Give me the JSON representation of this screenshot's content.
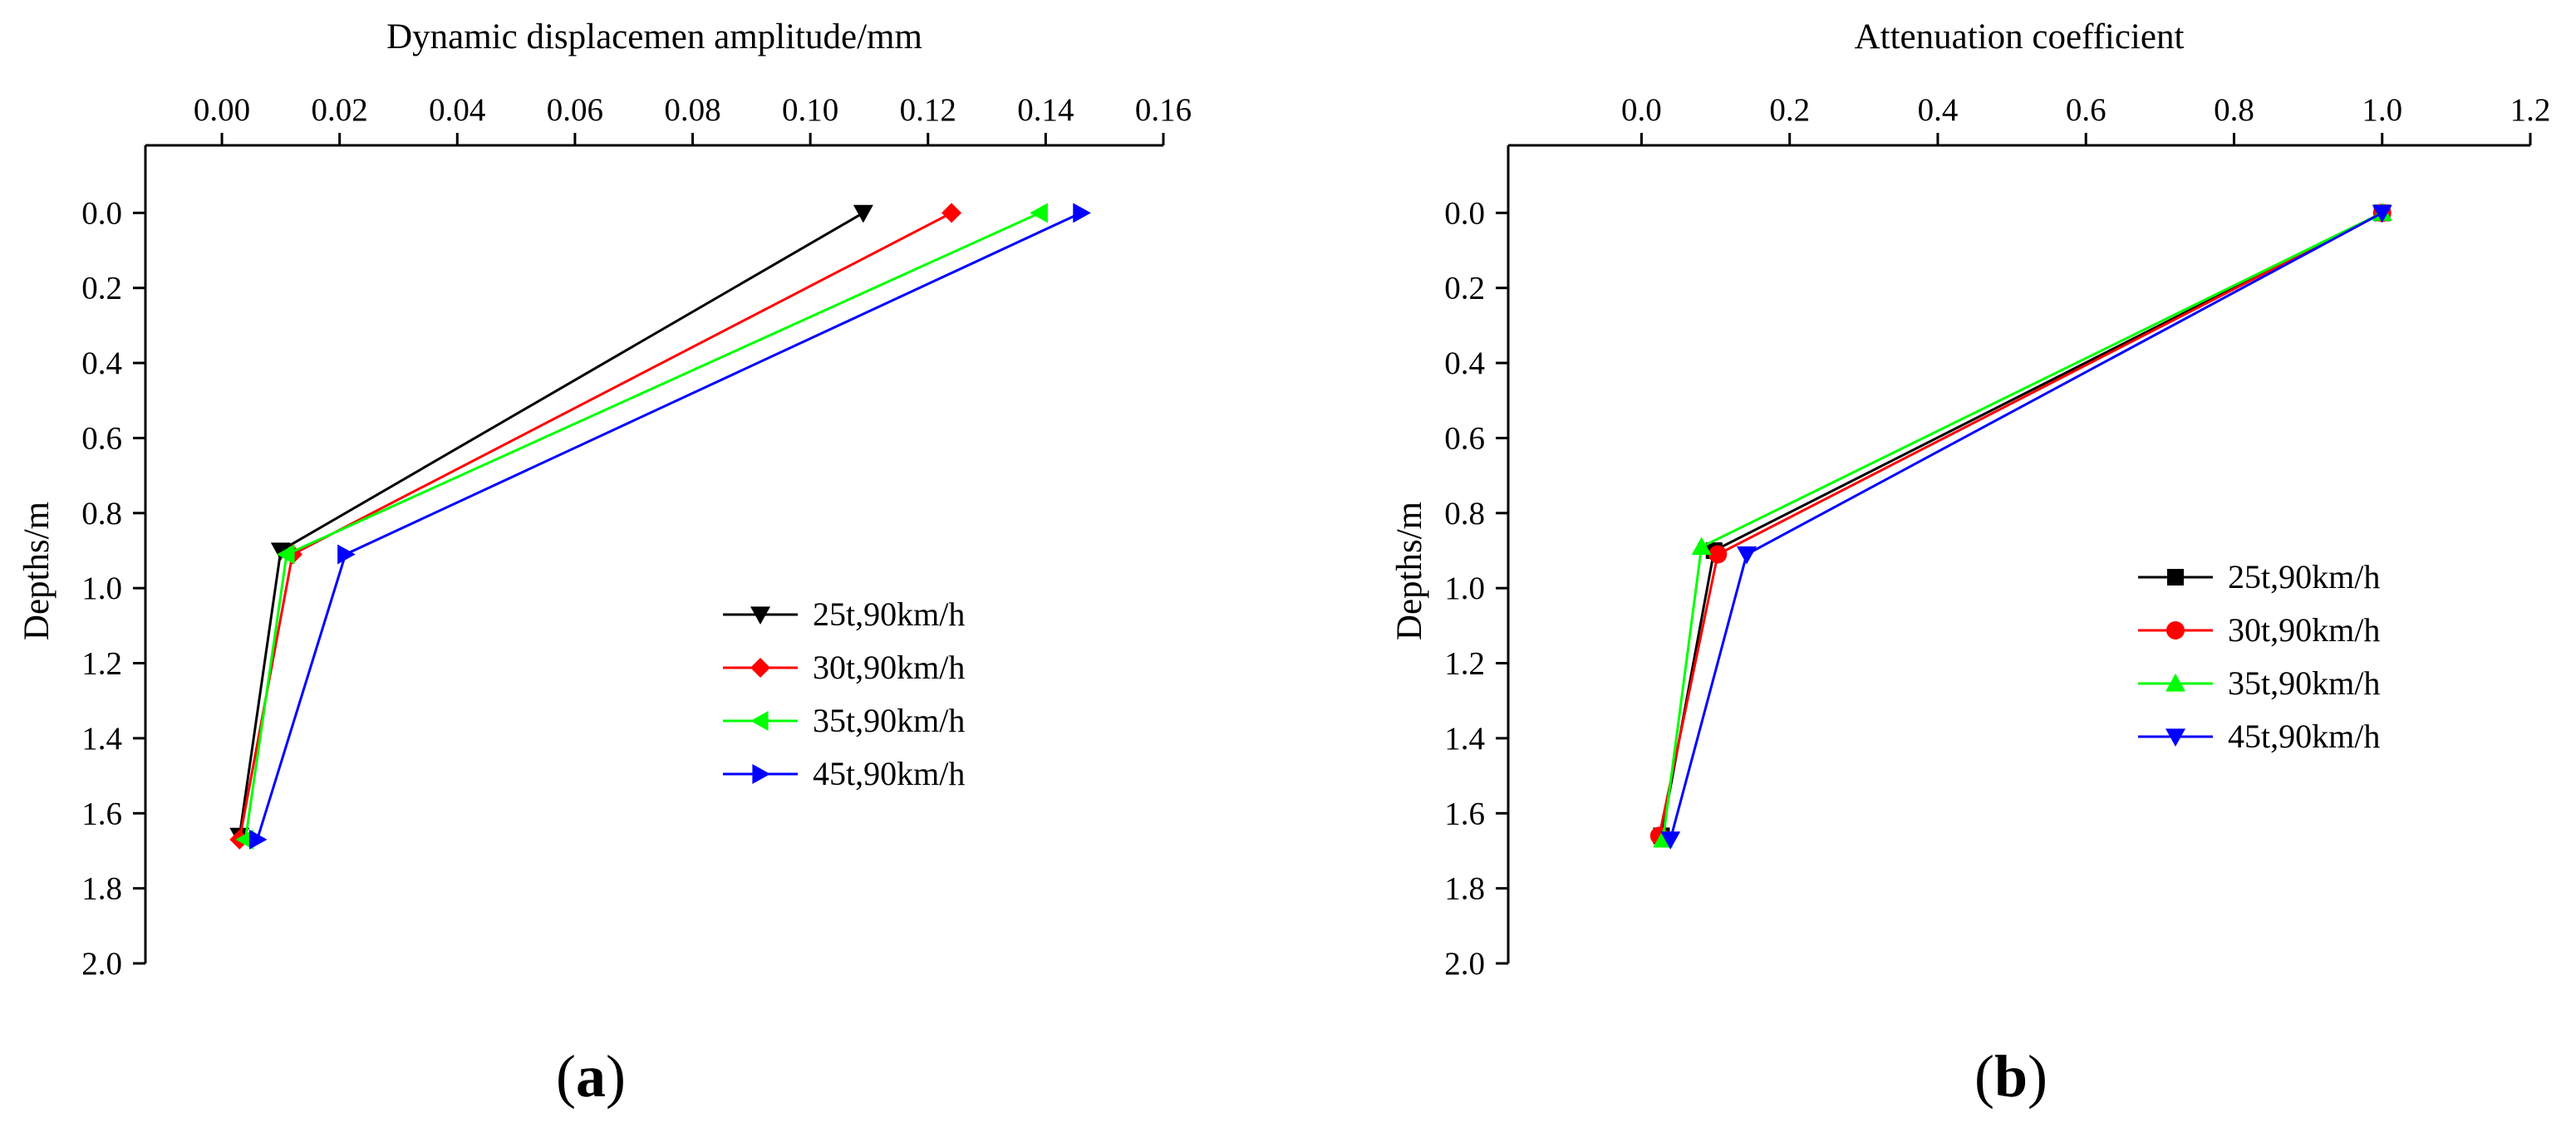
{
  "chart_data": [
    {
      "type": "line",
      "panel_label": "a",
      "title": "",
      "xlabel": "Dynamic displacemen amplitude/mm",
      "ylabel": "Depths/m",
      "xlim": [
        -0.013,
        0.16
      ],
      "ylim": [
        -0.18,
        2.0
      ],
      "y_inverted": true,
      "x_axis_position": "top",
      "x_ticks": [
        0.0,
        0.02,
        0.04,
        0.06,
        0.08,
        0.1,
        0.12,
        0.14,
        0.16
      ],
      "x_tick_labels": [
        "0.00",
        "0.02",
        "0.04",
        "0.06",
        "0.08",
        "0.10",
        "0.12",
        "0.14",
        "0.16"
      ],
      "y_ticks": [
        0.0,
        0.2,
        0.4,
        0.6,
        0.8,
        1.0,
        1.2,
        1.4,
        1.6,
        1.8,
        2.0
      ],
      "y_tick_labels": [
        "0.0",
        "0.2",
        "0.4",
        "0.6",
        "0.8",
        "1.0",
        "1.2",
        "1.4",
        "1.6",
        "1.8",
        "2.0"
      ],
      "legend_position": "middle-right",
      "grid": false,
      "series": [
        {
          "name": "25t,90km/h",
          "color": "#000000",
          "marker": "triangle-down",
          "x": [
            0.109,
            0.01,
            0.003
          ],
          "y": [
            0.0,
            0.9,
            1.66
          ]
        },
        {
          "name": "30t,90km/h",
          "color": "#ff0000",
          "marker": "diamond",
          "x": [
            0.124,
            0.012,
            0.003
          ],
          "y": [
            0.0,
            0.91,
            1.67
          ]
        },
        {
          "name": "35t,90km/h",
          "color": "#00ff00",
          "marker": "triangle-left",
          "x": [
            0.139,
            0.011,
            0.004
          ],
          "y": [
            0.0,
            0.91,
            1.67
          ]
        },
        {
          "name": "45t,90km/h",
          "color": "#0000ff",
          "marker": "triangle-right",
          "x": [
            0.146,
            0.021,
            0.006
          ],
          "y": [
            0.0,
            0.91,
            1.67
          ]
        }
      ]
    },
    {
      "type": "line",
      "panel_label": "b",
      "title": "",
      "xlabel": "Attenuation coefficient",
      "ylabel": "Depths/m",
      "xlim": [
        -0.18,
        1.2
      ],
      "ylim": [
        -0.18,
        2.0
      ],
      "y_inverted": true,
      "x_axis_position": "top",
      "x_ticks": [
        0.0,
        0.2,
        0.4,
        0.6,
        0.8,
        1.0,
        1.2
      ],
      "x_tick_labels": [
        "0.0",
        "0.2",
        "0.4",
        "0.6",
        "0.8",
        "1.0",
        "1.2"
      ],
      "y_ticks": [
        0.0,
        0.2,
        0.4,
        0.6,
        0.8,
        1.0,
        1.2,
        1.4,
        1.6,
        1.8,
        2.0
      ],
      "y_tick_labels": [
        "0.0",
        "0.2",
        "0.4",
        "0.6",
        "0.8",
        "1.0",
        "1.2",
        "1.4",
        "1.6",
        "1.8",
        "2.0"
      ],
      "legend_position": "middle-right",
      "grid": false,
      "series": [
        {
          "name": "25t,90km/h",
          "color": "#000000",
          "marker": "square",
          "x": [
            1.0,
            0.098,
            0.027
          ],
          "y": [
            0.0,
            0.9,
            1.66
          ]
        },
        {
          "name": "30t,90km/h",
          "color": "#ff0000",
          "marker": "circle",
          "x": [
            1.0,
            0.103,
            0.024
          ],
          "y": [
            0.0,
            0.91,
            1.66
          ]
        },
        {
          "name": "35t,90km/h",
          "color": "#00ff00",
          "marker": "triangle-up",
          "x": [
            1.0,
            0.081,
            0.029
          ],
          "y": [
            0.0,
            0.89,
            1.67
          ]
        },
        {
          "name": "45t,90km/h",
          "color": "#0000ff",
          "marker": "triangle-down",
          "x": [
            1.0,
            0.142,
            0.039
          ],
          "y": [
            0.0,
            0.91,
            1.67
          ]
        }
      ]
    }
  ]
}
